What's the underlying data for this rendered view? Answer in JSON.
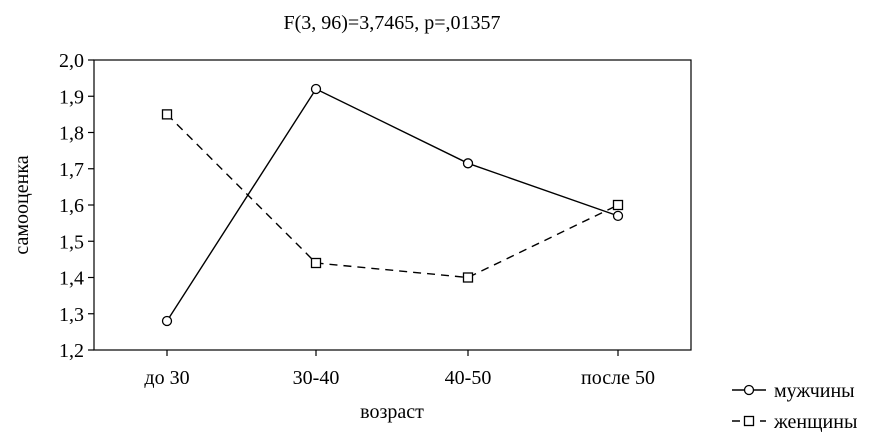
{
  "chart_data": {
    "type": "line",
    "title": "F(3, 96)=3,7465, p=,01357",
    "xlabel": "возраст",
    "ylabel": "самооценка",
    "categories": [
      "до 30",
      "30-40",
      "40-50",
      "после 50"
    ],
    "ylim": [
      1.2,
      2.0
    ],
    "yticks": [
      "1,2",
      "1,3",
      "1,4",
      "1,5",
      "1,6",
      "1,7",
      "1,8",
      "1,9",
      "2,0"
    ],
    "grid": false,
    "legend_position": "bottom-right",
    "series": [
      {
        "name": "мужчины",
        "marker": "circle",
        "dash": "solid",
        "values": [
          1.28,
          1.92,
          1.715,
          1.57
        ]
      },
      {
        "name": "женщины",
        "marker": "square",
        "dash": "dashed",
        "values": [
          1.85,
          1.44,
          1.4,
          1.6
        ]
      }
    ]
  }
}
